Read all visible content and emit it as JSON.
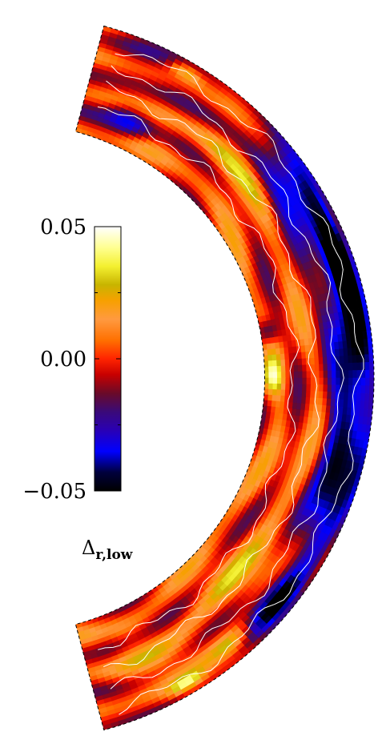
{
  "chart_data": {
    "type": "heatmap",
    "title": "",
    "geometry": "meridional shell section",
    "colorbar": {
      "label_symbol": "Δ",
      "label_subscript": "r,low",
      "range": [
        -0.05,
        0.05
      ],
      "ticks": [
        {
          "value": 0.05,
          "label": "0.05"
        },
        {
          "value": 0.0,
          "label": "0.00"
        },
        {
          "value": -0.05,
          "label": "−0.05"
        }
      ],
      "stops": [
        {
          "v": -0.05,
          "color": "#000000"
        },
        {
          "v": -0.043,
          "color": "#00003c"
        },
        {
          "v": -0.035,
          "color": "#0000ff"
        },
        {
          "v": -0.027,
          "color": "#2a00b4"
        },
        {
          "v": -0.02,
          "color": "#3a0a78"
        },
        {
          "v": -0.013,
          "color": "#6a0a28"
        },
        {
          "v": -0.006,
          "color": "#c80000"
        },
        {
          "v": 0.0,
          "color": "#ff2400"
        },
        {
          "v": 0.007,
          "color": "#ff7000"
        },
        {
          "v": 0.015,
          "color": "#ff9a40"
        },
        {
          "v": 0.022,
          "color": "#f7a000"
        },
        {
          "v": 0.028,
          "color": "#c8b400"
        },
        {
          "v": 0.035,
          "color": "#f4f030"
        },
        {
          "v": 0.042,
          "color": "#ffff90"
        },
        {
          "v": 0.05,
          "color": "#ffffff"
        }
      ]
    },
    "shell": {
      "inner_radius_fraction": 0.7,
      "colatitude_range_deg": [
        15,
        165
      ]
    },
    "field_description_values": {
      "background": 0.002,
      "features": [
        {
          "colat": 60,
          "rad": 0.93,
          "v": -0.022,
          "w": 18,
          "h": 0.07
        },
        {
          "colat": 85,
          "rad": 0.95,
          "v": -0.025,
          "w": 25,
          "h": 0.06
        },
        {
          "colat": 110,
          "rad": 0.94,
          "v": -0.022,
          "w": 20,
          "h": 0.06
        },
        {
          "colat": 130,
          "rad": 0.95,
          "v": -0.03,
          "w": 6,
          "h": 0.04
        },
        {
          "colat": 70,
          "rad": 0.96,
          "v": -0.035,
          "w": 5,
          "h": 0.03
        },
        {
          "colat": 25,
          "rad": 0.78,
          "v": -0.03,
          "w": 5,
          "h": 0.05
        },
        {
          "colat": 20,
          "rad": 0.92,
          "v": -0.012,
          "w": 6,
          "h": 0.08
        },
        {
          "colat": 90,
          "rad": 0.72,
          "v": 0.038,
          "w": 4,
          "h": 0.03
        },
        {
          "colat": 80,
          "rad": 0.72,
          "v": -0.03,
          "w": 3,
          "h": 0.03
        },
        {
          "colat": 47,
          "rad": 0.85,
          "v": 0.02,
          "w": 14,
          "h": 0.04
        },
        {
          "colat": 130,
          "rad": 0.84,
          "v": 0.02,
          "w": 14,
          "h": 0.05
        },
        {
          "colat": 140,
          "rad": 0.95,
          "v": 0.03,
          "w": 4,
          "h": 0.03
        },
        {
          "colat": 155,
          "rad": 0.88,
          "v": 0.01,
          "w": 8,
          "h": 0.06
        },
        {
          "colat": 160,
          "rad": 0.78,
          "v": -0.01,
          "w": 4,
          "h": 0.05
        },
        {
          "colat": 150,
          "rad": 0.97,
          "v": 0.035,
          "w": 3,
          "h": 0.02
        },
        {
          "colat": 30,
          "rad": 0.97,
          "v": 0.035,
          "w": 3,
          "h": 0.02
        }
      ]
    }
  }
}
